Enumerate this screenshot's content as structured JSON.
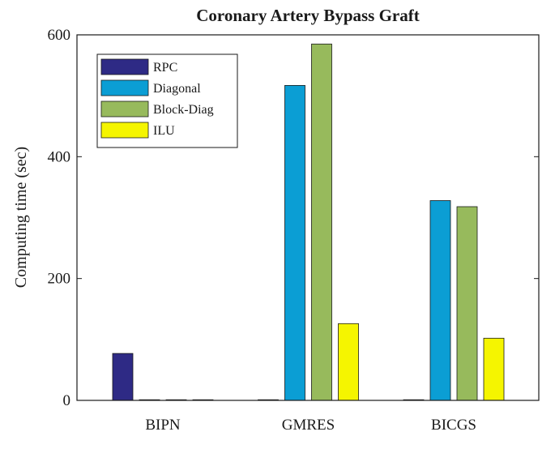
{
  "chart_data": {
    "type": "bar",
    "title": "Coronary Artery Bypass Graft",
    "xlabel": "",
    "ylabel": "Computing time (sec)",
    "ylim": [
      0,
      600
    ],
    "yticks": [
      0,
      200,
      400,
      600
    ],
    "categories": [
      "BIPN",
      "GMRES",
      "BICGS"
    ],
    "series": [
      {
        "name": "RPC",
        "color": "#2e2a85",
        "values": [
          77,
          0,
          0
        ]
      },
      {
        "name": "Diagonal",
        "color": "#0b9ed4",
        "values": [
          0,
          517,
          328
        ]
      },
      {
        "name": "Block-Diag",
        "color": "#97ba5c",
        "values": [
          0,
          585,
          318
        ]
      },
      {
        "name": "ILU",
        "color": "#f5f500",
        "values": [
          0,
          126,
          102
        ]
      }
    ],
    "grid": false,
    "legend_position": "top-left"
  }
}
